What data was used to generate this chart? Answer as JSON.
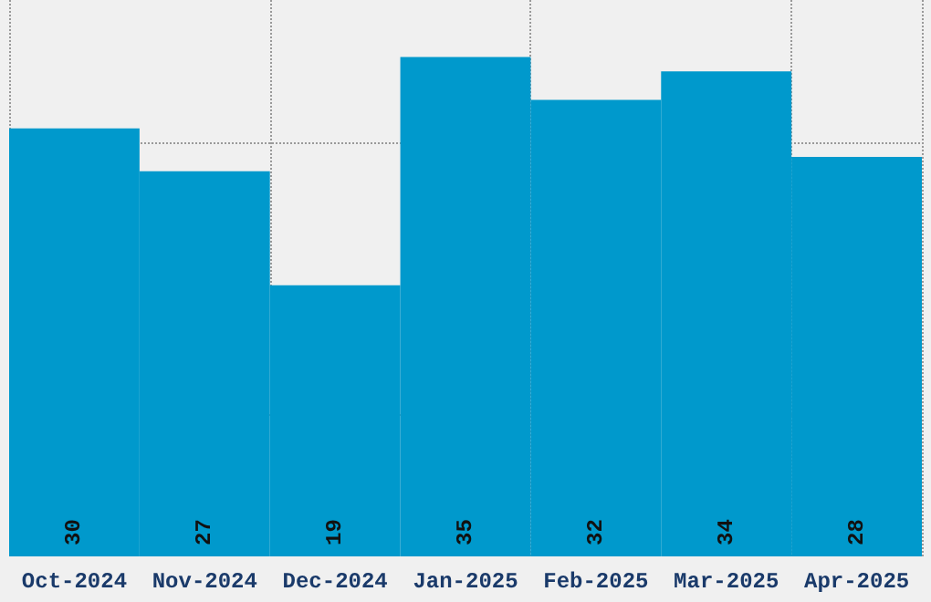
{
  "chart_data": {
    "type": "bar",
    "categories": [
      "Oct-2024",
      "Nov-2024",
      "Dec-2024",
      "Jan-2025",
      "Feb-2025",
      "Mar-2025",
      "Apr-2025"
    ],
    "values": [
      30,
      27,
      19,
      35,
      32,
      34,
      28
    ],
    "color": "#0099cc",
    "data_labels": true,
    "ylim": [
      0,
      39
    ],
    "yticks": [
      {
        "value": 10,
        "label": null
      },
      {
        "value": 29,
        "label": null
      }
    ],
    "tick_labels": "x",
    "grid": true
  }
}
